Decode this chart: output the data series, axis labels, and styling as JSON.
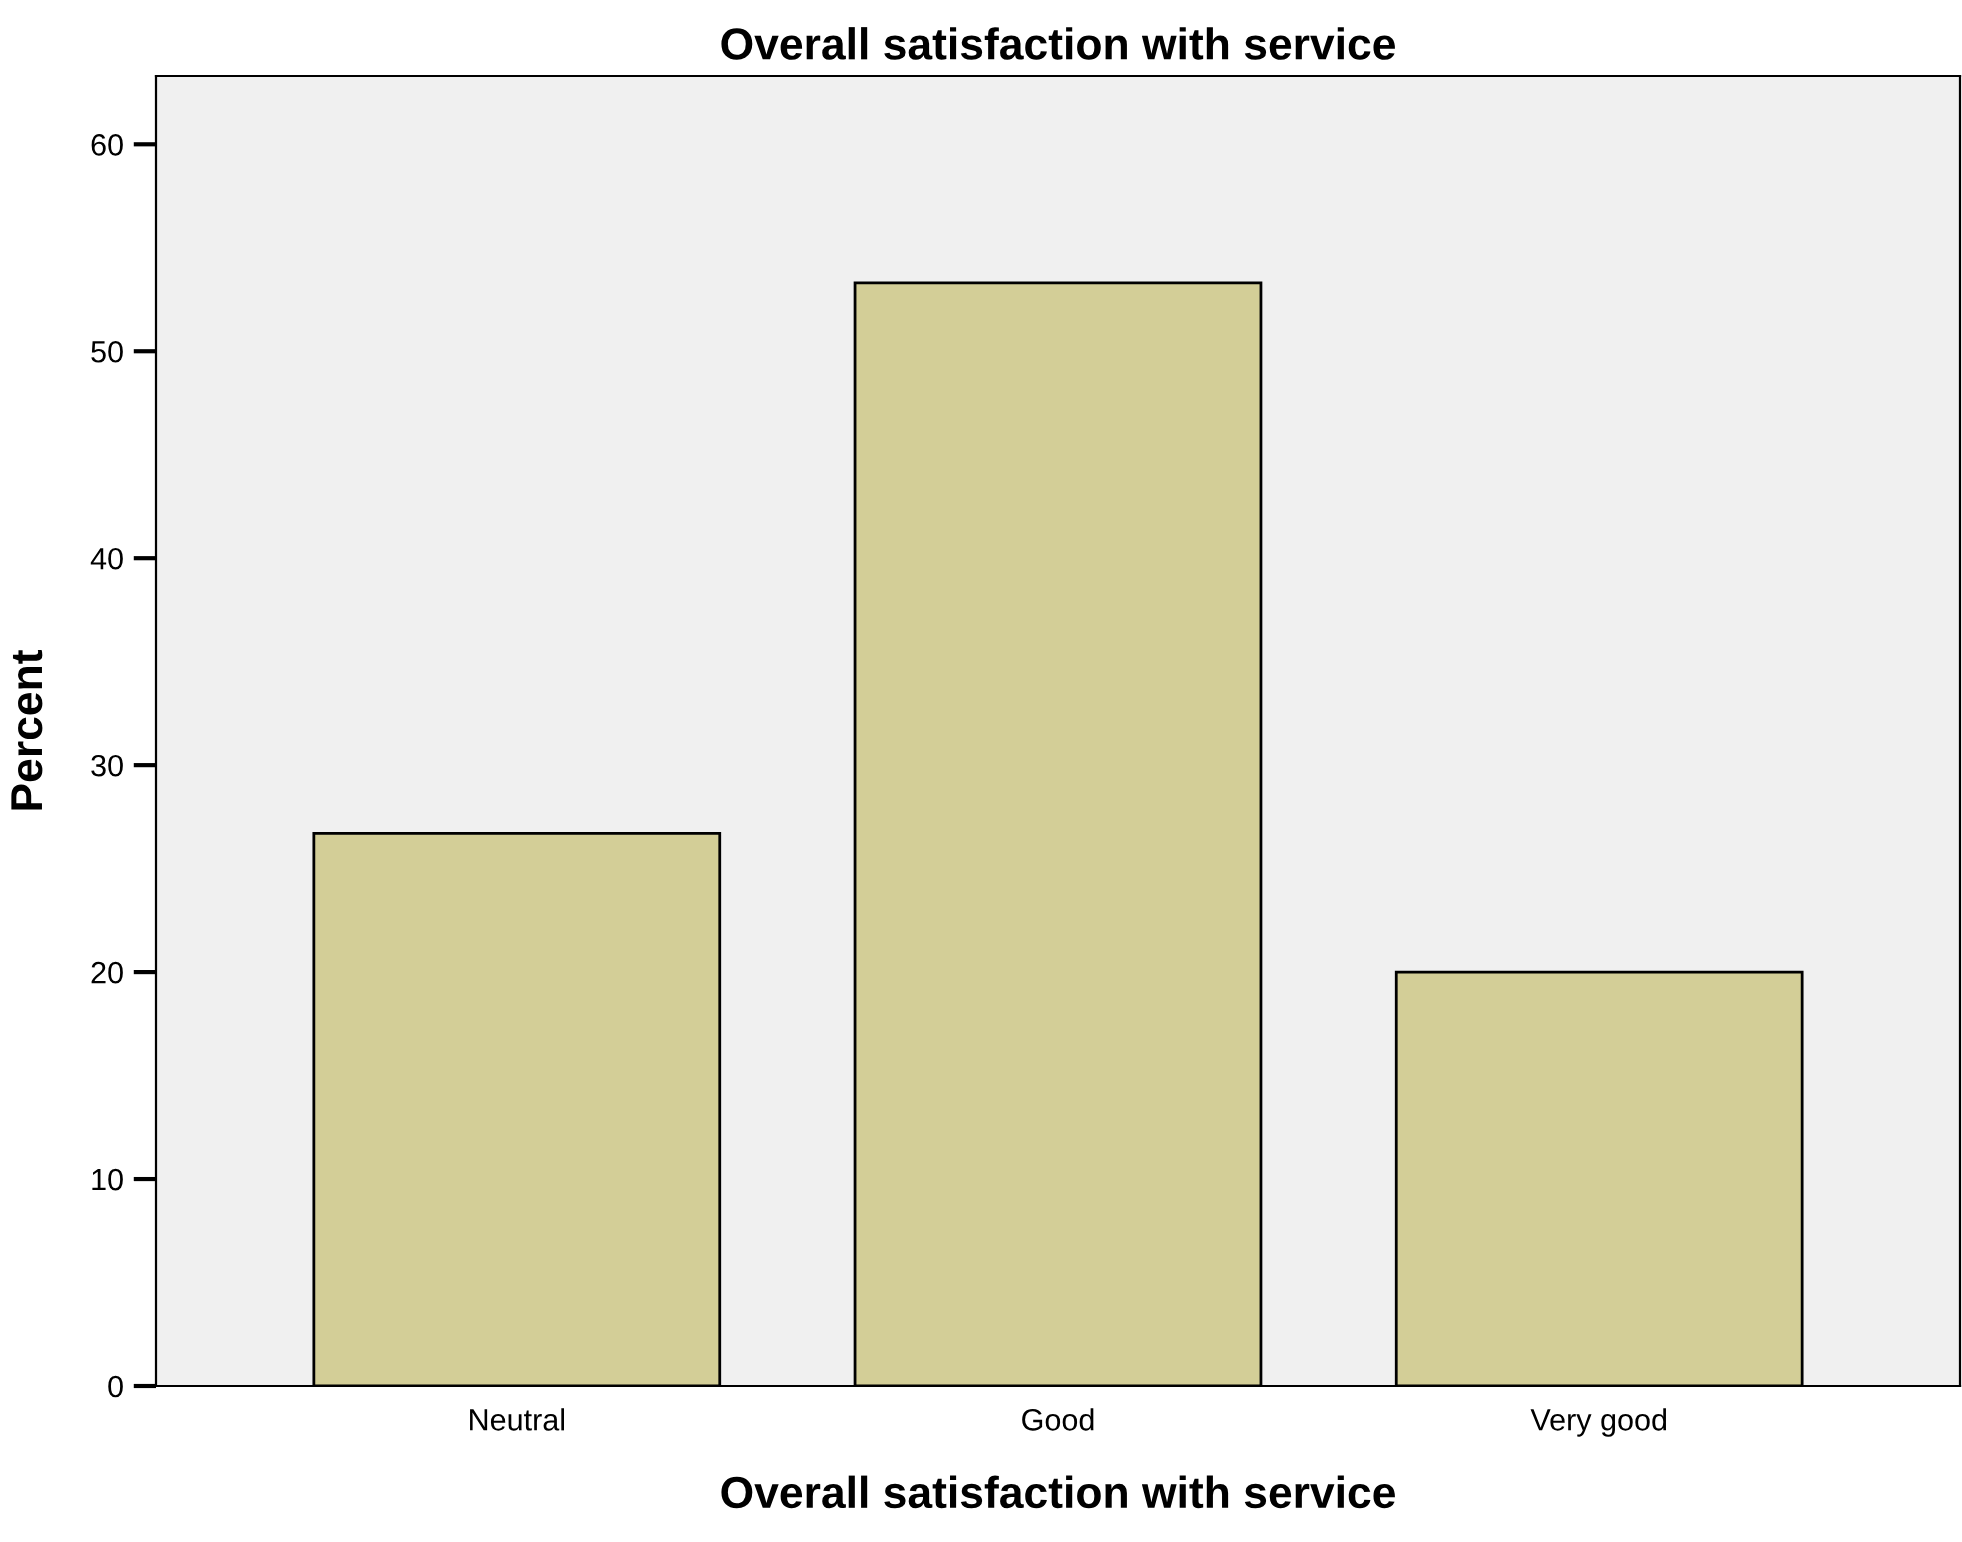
{
  "chart_data": {
    "type": "bar",
    "title": "Overall satisfaction with service",
    "xlabel": "Overall satisfaction with service",
    "ylabel": "Percent",
    "categories": [
      "Neutral",
      "Good",
      "Very good"
    ],
    "values": [
      26.7,
      53.3,
      20.0
    ],
    "color": "#d3ce97",
    "ylim": [
      0,
      63.3
    ],
    "yticks": [
      0,
      10,
      20,
      30,
      40,
      50,
      60
    ],
    "grid": false
  }
}
